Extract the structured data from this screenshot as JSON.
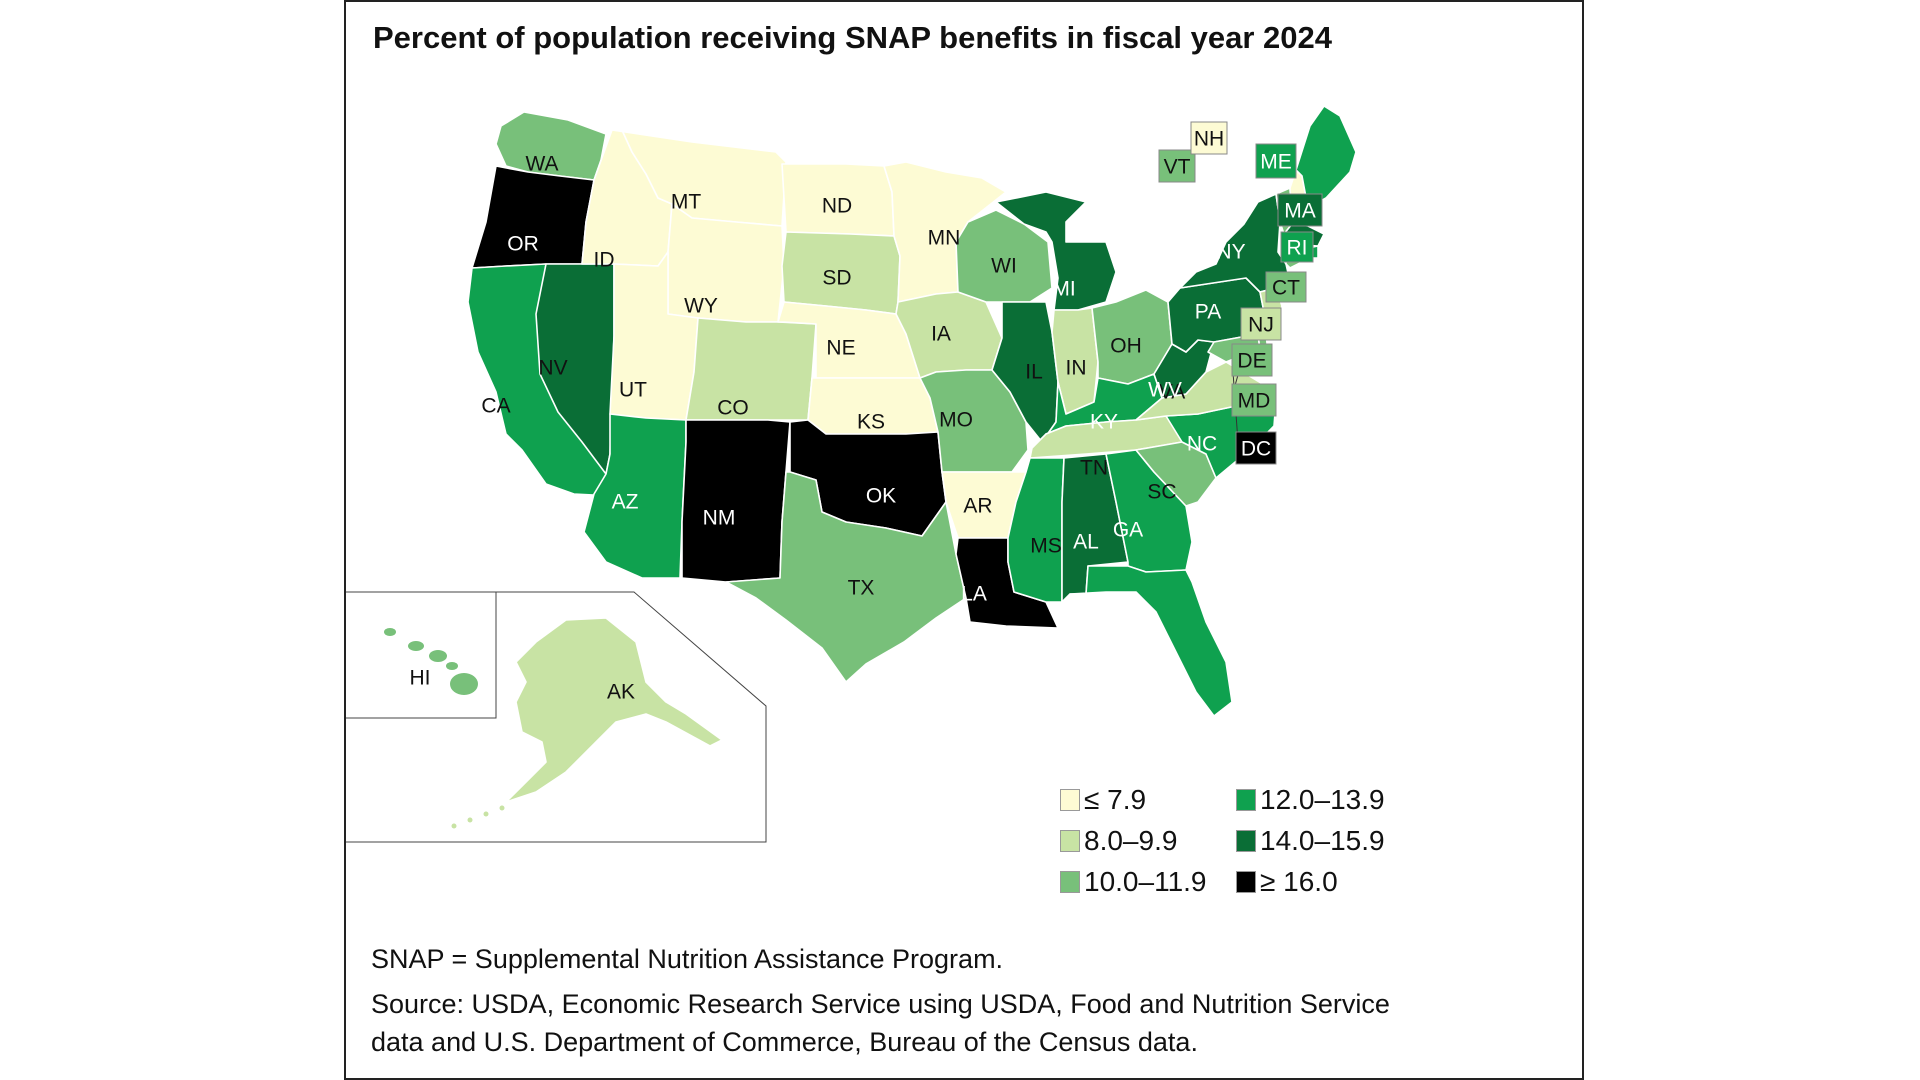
{
  "title": "Percent of population receiving SNAP benefits in fiscal year 2024",
  "legend": [
    {
      "label": "≤ 7.9",
      "color": "#fdfbd4"
    },
    {
      "label": "8.0–9.9",
      "color": "#c8e3a4"
    },
    {
      "label": "10.0–11.9",
      "color": "#78c07a"
    },
    {
      "label": "12.0–13.9",
      "color": "#0fa14f"
    },
    {
      "label": "14.0–15.9",
      "color": "#0a6e36"
    },
    {
      "label": "≥ 16.0",
      "color": "#000000"
    }
  ],
  "states": [
    {
      "abbr": "WA",
      "class": 2
    },
    {
      "abbr": "OR",
      "class": 5
    },
    {
      "abbr": "CA",
      "class": 3
    },
    {
      "abbr": "NV",
      "class": 4
    },
    {
      "abbr": "ID",
      "class": 0
    },
    {
      "abbr": "MT",
      "class": 0
    },
    {
      "abbr": "WY",
      "class": 0
    },
    {
      "abbr": "UT",
      "class": 0
    },
    {
      "abbr": "AZ",
      "class": 3
    },
    {
      "abbr": "CO",
      "class": 1
    },
    {
      "abbr": "NM",
      "class": 5
    },
    {
      "abbr": "ND",
      "class": 0
    },
    {
      "abbr": "SD",
      "class": 1
    },
    {
      "abbr": "NE",
      "class": 0
    },
    {
      "abbr": "KS",
      "class": 0
    },
    {
      "abbr": "OK",
      "class": 5
    },
    {
      "abbr": "TX",
      "class": 2
    },
    {
      "abbr": "MN",
      "class": 0
    },
    {
      "abbr": "IA",
      "class": 1
    },
    {
      "abbr": "MO",
      "class": 2
    },
    {
      "abbr": "AR",
      "class": 0
    },
    {
      "abbr": "LA",
      "class": 5
    },
    {
      "abbr": "WI",
      "class": 2
    },
    {
      "abbr": "IL",
      "class": 4
    },
    {
      "abbr": "MI",
      "class": 4
    },
    {
      "abbr": "IN",
      "class": 1
    },
    {
      "abbr": "OH",
      "class": 2
    },
    {
      "abbr": "KY",
      "class": 3
    },
    {
      "abbr": "TN",
      "class": 1
    },
    {
      "abbr": "MS",
      "class": 3
    },
    {
      "abbr": "AL",
      "class": 4
    },
    {
      "abbr": "GA",
      "class": 3
    },
    {
      "abbr": "FL",
      "class": 3
    },
    {
      "abbr": "SC",
      "class": 2
    },
    {
      "abbr": "NC",
      "class": 3
    },
    {
      "abbr": "VA",
      "class": 1
    },
    {
      "abbr": "WV",
      "class": 4
    },
    {
      "abbr": "PA",
      "class": 4
    },
    {
      "abbr": "NY",
      "class": 4
    },
    {
      "abbr": "VT",
      "class": 2
    },
    {
      "abbr": "NH",
      "class": 0
    },
    {
      "abbr": "ME",
      "class": 3
    },
    {
      "abbr": "MA",
      "class": 4
    },
    {
      "abbr": "RI",
      "class": 3
    },
    {
      "abbr": "CT",
      "class": 2
    },
    {
      "abbr": "NJ",
      "class": 1
    },
    {
      "abbr": "DE",
      "class": 2
    },
    {
      "abbr": "MD",
      "class": 2
    },
    {
      "abbr": "DC",
      "class": 5
    },
    {
      "abbr": "AK",
      "class": 1
    },
    {
      "abbr": "HI",
      "class": 2
    }
  ],
  "notes": {
    "definition": "SNAP = Supplemental Nutrition Assistance Program.",
    "source_line1": "Source: USDA, Economic Research Service using USDA, Food and Nutrition Service",
    "source_line2": "data and U.S. Department of Commerce, Bureau of the Census data."
  }
}
